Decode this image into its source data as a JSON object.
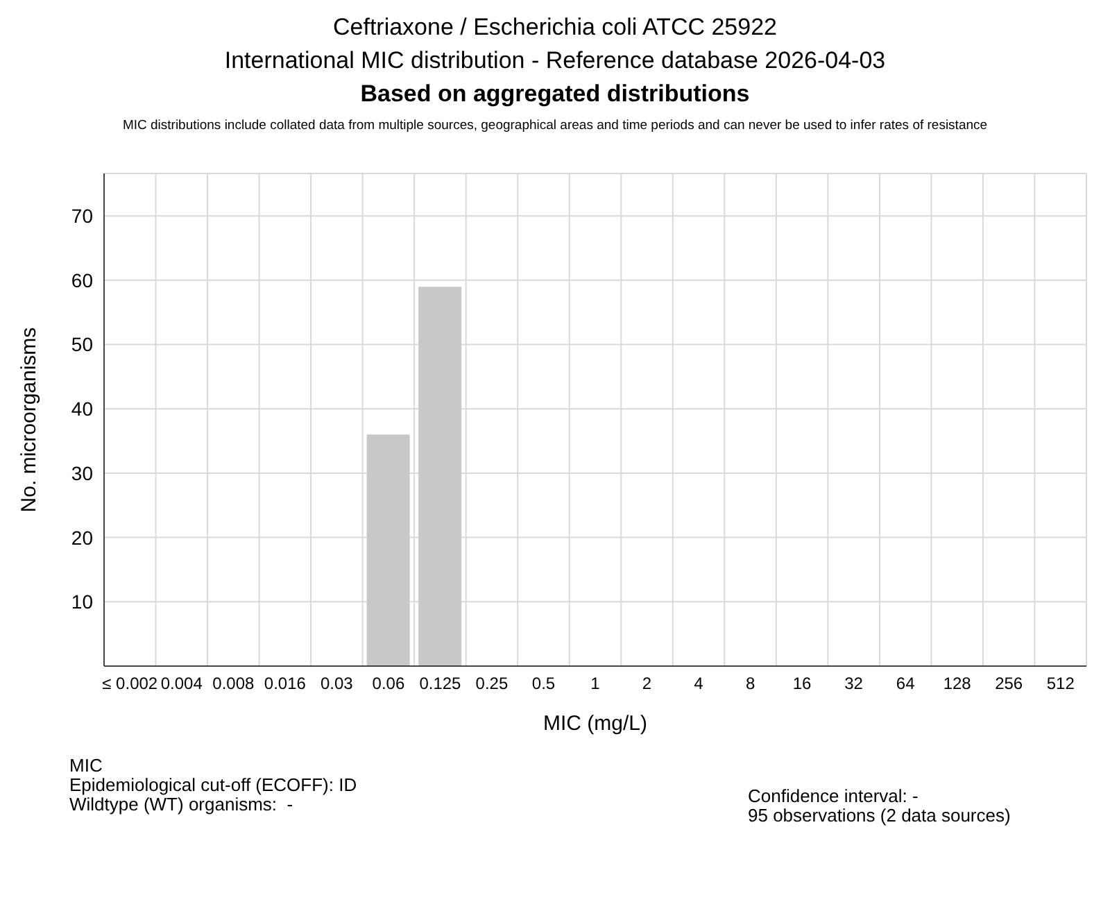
{
  "chart_data": {
    "type": "bar",
    "title": "Ceftriaxone / Escherichia coli ATCC 25922",
    "subtitle": "International MIC distribution - Reference database 2026-04-03",
    "annotations": [
      "Based on aggregated distributions",
      "MIC distributions include collated data from multiple sources, geographical areas and time periods and can never be used to infer rates of resistance",
      "MIC",
      "Epidemiological cut-off (ECOFF): ID",
      "Wildtype (WT) organisms:  -",
      "Confidence interval: -",
      "95 observations (2 data sources)"
    ],
    "xlabel": "MIC (mg/L)",
    "ylabel": "No. microorganisms",
    "categories": [
      "≤ 0.002",
      "0.004",
      "0.008",
      "0.016",
      "0.03",
      "0.06",
      "0.125",
      "0.25",
      "0.5",
      "1",
      "2",
      "4",
      "8",
      "16",
      "32",
      "64",
      "128",
      "256",
      "512"
    ],
    "values": [
      0,
      0,
      0,
      0,
      0,
      36,
      59,
      0,
      0,
      0,
      0,
      0,
      0,
      0,
      0,
      0,
      0,
      0,
      0
    ],
    "color": "#c8c8c8",
    "ylim": [
      0,
      76.6
    ],
    "yticks": [
      10,
      20,
      30,
      40,
      50,
      60,
      70
    ],
    "grid": true
  }
}
